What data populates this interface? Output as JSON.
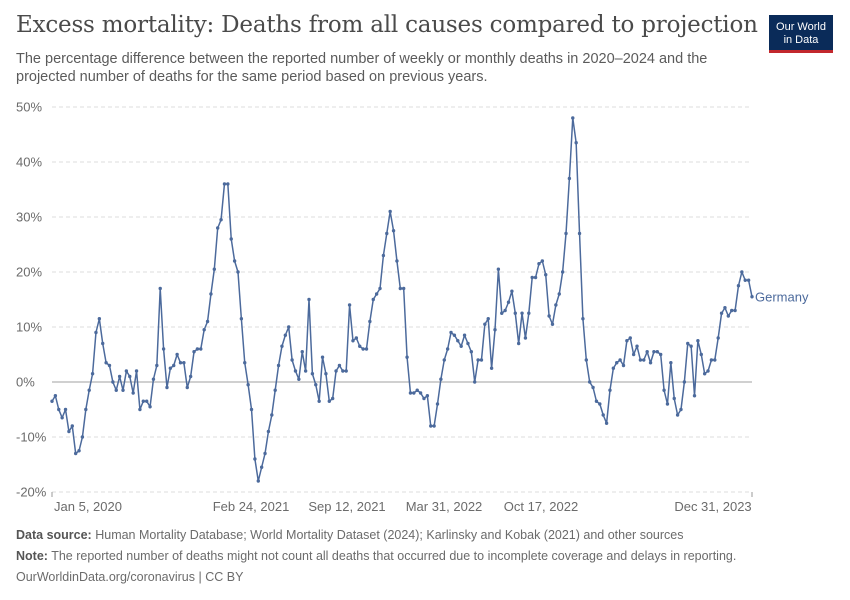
{
  "header": {
    "title": "Excess mortality: Deaths from all causes compared to projection",
    "subtitle": "The percentage difference between the reported number of weekly or monthly deaths in 2020–2024 and the projected number of deaths for the same period based on previous years.",
    "logo_line1": "Our World",
    "logo_line2": "in Data"
  },
  "footer": {
    "source_label": "Data source:",
    "source_text": "Human Mortality Database; World Mortality Dataset (2024); Karlinsky and Kobak (2021) and other sources",
    "note_label": "Note:",
    "note_text": "The reported number of deaths might not count all deaths that occurred due to incomplete coverage and delays in reporting.",
    "credit": "OurWorldinData.org/coronavirus | CC BY"
  },
  "colors": {
    "series": "#4c6a9c",
    "grid": "#dddddd",
    "zero": "#a0a0a0",
    "logo_bg": "#0a2b59",
    "logo_accent": "#c2282d"
  },
  "chart_data": {
    "type": "line",
    "title": "Excess mortality: Deaths from all causes compared to projection",
    "y_unit": "%",
    "ylim": [
      -20,
      50
    ],
    "y_ticks": [
      -20,
      -10,
      0,
      10,
      20,
      30,
      40,
      50
    ],
    "y_tick_labels": [
      "-20%",
      "-10%",
      "0%",
      "10%",
      "20%",
      "30%",
      "40%",
      "50%"
    ],
    "x_ticks": [
      "Jan 5, 2020",
      "Feb 24, 2021",
      "Sep 12, 2021",
      "Mar 31, 2022",
      "Oct 17, 2022",
      "Dec 31, 2023"
    ],
    "grid": "horizontal dashed",
    "legend": "end-of-line label",
    "series": [
      {
        "name": "Germany",
        "values": [
          -3.5,
          -2.5,
          -5,
          -6.5,
          -5,
          -9,
          -8,
          -13,
          -12.5,
          -10,
          -5,
          -1.5,
          1.5,
          9,
          11.5,
          7,
          3.5,
          3,
          0,
          -1.5,
          1,
          -1.5,
          2,
          1,
          -2,
          2,
          -5,
          -3.5,
          -3.5,
          -4.5,
          0.5,
          3,
          17,
          6,
          -1,
          2.5,
          3,
          5,
          3.5,
          3.5,
          -1,
          1,
          5.5,
          6,
          6,
          9.5,
          11,
          16,
          20.5,
          28,
          29.5,
          36,
          36,
          26,
          22,
          20,
          11.5,
          3.5,
          -0.5,
          -5,
          -14,
          -18,
          -15.5,
          -13,
          -9,
          -6,
          -1.5,
          3,
          6.5,
          8.5,
          10,
          4,
          2,
          0.5,
          5.5,
          2,
          15,
          1.5,
          -0.5,
          -3.5,
          4.5,
          1.5,
          -3.5,
          -3,
          2,
          3,
          2,
          2,
          14,
          7.5,
          8,
          6.5,
          6,
          6,
          11,
          15,
          16,
          17,
          23,
          27,
          31,
          27.5,
          22,
          17,
          17,
          4.5,
          -2,
          -2,
          -1.5,
          -2,
          -3,
          -2.5,
          -8,
          -8,
          -4,
          0.5,
          4,
          6,
          9,
          8.5,
          7.5,
          6.5,
          8.5,
          7,
          5.5,
          0,
          4,
          4,
          10.5,
          11.5,
          2.5,
          9.5,
          20.5,
          12.5,
          13,
          14.5,
          16.5,
          12.5,
          7,
          12.5,
          8,
          12.5,
          19,
          19,
          21.5,
          22,
          19.5,
          12,
          10.5,
          14,
          16,
          20,
          27,
          37,
          48,
          43.5,
          27,
          11.5,
          4,
          0,
          -1,
          -3.5,
          -4,
          -6,
          -7.5,
          -1.5,
          2.5,
          3.5,
          4,
          3,
          7.5,
          8,
          5,
          6.5,
          4,
          4,
          5.5,
          3.5,
          5.5,
          5.5,
          5,
          -1.5,
          -4,
          3.5,
          -3,
          -6,
          -5,
          0,
          7,
          6.5,
          -2.5,
          7.5,
          5,
          1.5,
          2,
          4,
          4,
          8,
          12.5,
          13.5,
          12,
          13,
          13,
          17.5,
          20,
          18.5,
          18.5,
          15.5
        ]
      }
    ]
  }
}
